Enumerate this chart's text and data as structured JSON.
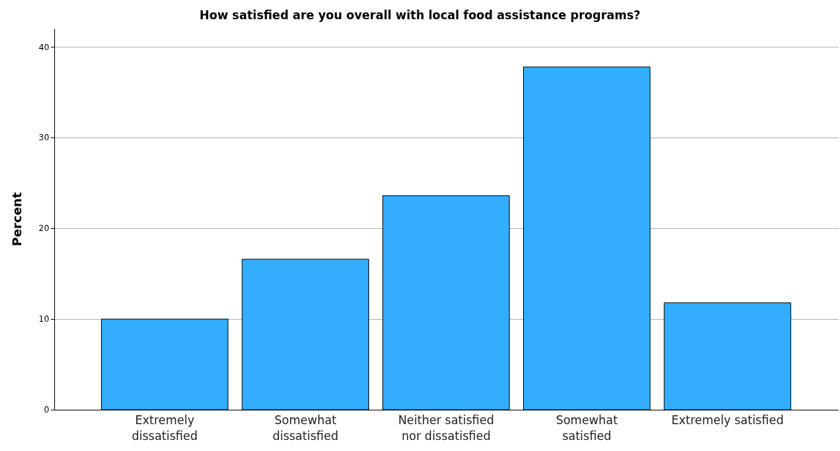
{
  "chart_data": {
    "type": "bar",
    "title": "How satisfied are you overall with local food assistance programs?",
    "ylabel": "Percent",
    "categories": [
      "Extremely\ndissatisfied",
      "Somewhat\ndissatisfied",
      "Neither satisfied\nnor dissatisfied",
      "Somewhat\nsatisfied",
      "Extremely satisfied"
    ],
    "values": [
      10.0,
      16.6,
      23.6,
      37.8,
      11.8
    ],
    "color": "#33adff",
    "ylim": [
      0,
      42
    ],
    "yticks": [
      0,
      10,
      20,
      30,
      40
    ],
    "grid": "y"
  }
}
